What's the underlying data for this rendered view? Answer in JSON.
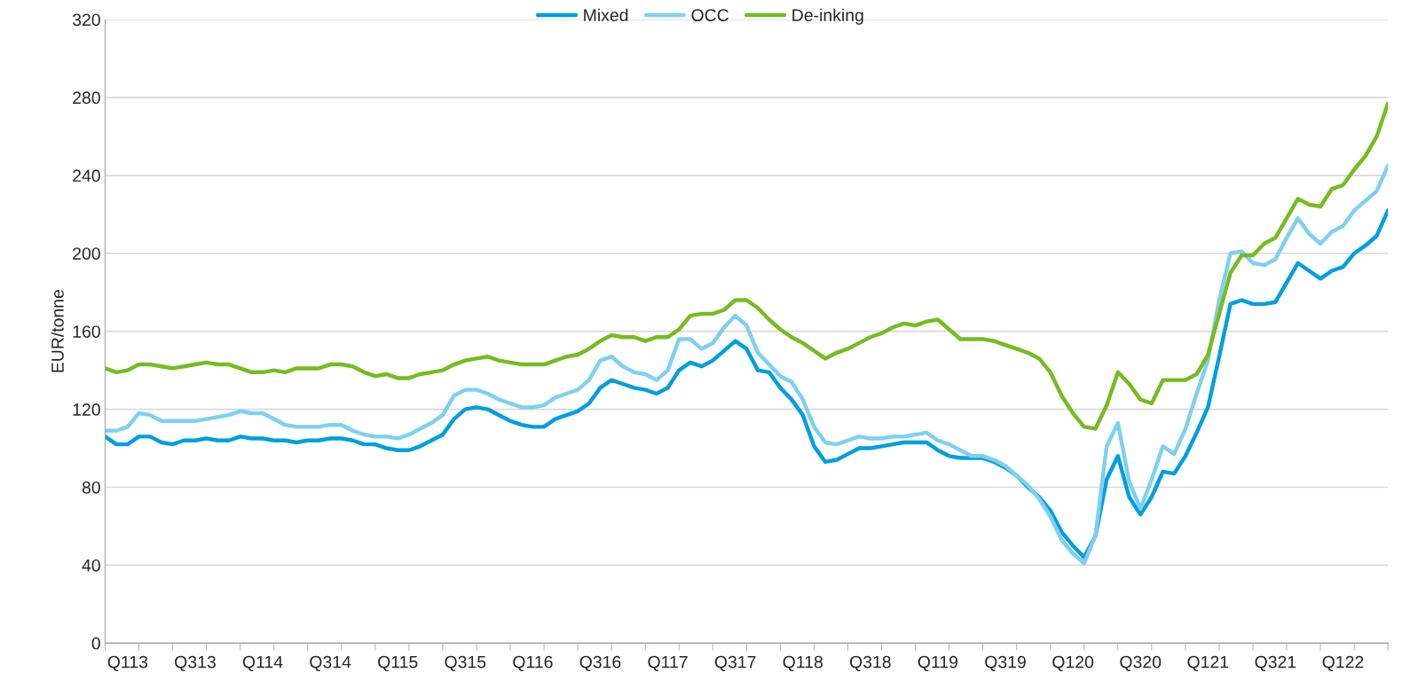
{
  "chart_data": {
    "type": "line",
    "ylabel": "EUR/tonne",
    "categories": [
      null,
      null,
      "Q113",
      null,
      null,
      null,
      null,
      null,
      "Q313",
      null,
      null,
      null,
      null,
      null,
      "Q114",
      null,
      null,
      null,
      null,
      null,
      "Q314",
      null,
      null,
      null,
      null,
      null,
      "Q115",
      null,
      null,
      null,
      null,
      null,
      "Q315",
      null,
      null,
      null,
      null,
      null,
      "Q116",
      null,
      null,
      null,
      null,
      null,
      "Q316",
      null,
      null,
      null,
      null,
      null,
      "Q117",
      null,
      null,
      null,
      null,
      null,
      "Q317",
      null,
      null,
      null,
      null,
      null,
      "Q118",
      null,
      null,
      null,
      null,
      null,
      "Q318",
      null,
      null,
      null,
      null,
      null,
      "Q119",
      null,
      null,
      null,
      null,
      null,
      "Q319",
      null,
      null,
      null,
      null,
      null,
      "Q120",
      null,
      null,
      null,
      null,
      null,
      "Q320",
      null,
      null,
      null,
      null,
      null,
      "Q121",
      null,
      null,
      null,
      null,
      null,
      "Q321",
      null,
      null,
      null,
      null,
      null,
      "Q122",
      null,
      null,
      null,
      null
    ],
    "series": [
      {
        "name": "Mixed",
        "color": "#009fdf",
        "values": [
          106,
          102,
          102,
          106,
          106,
          103,
          102,
          104,
          104,
          105,
          104,
          104,
          106,
          105,
          105,
          104,
          104,
          103,
          104,
          104,
          105,
          105,
          104,
          102,
          102,
          100,
          99,
          99,
          101,
          104,
          107,
          115,
          120,
          121,
          120,
          117,
          114,
          112,
          111,
          111,
          115,
          117,
          119,
          123,
          131,
          135,
          133,
          131,
          130,
          128,
          131,
          140,
          144,
          142,
          145,
          150,
          155,
          151,
          140,
          139,
          131,
          125,
          117,
          101,
          93,
          94,
          97,
          100,
          100,
          101,
          102,
          103,
          103,
          103,
          99,
          96,
          95,
          95,
          95,
          93,
          90,
          86,
          80,
          75,
          68,
          57,
          50,
          44,
          55,
          84,
          96,
          75,
          66,
          75,
          88,
          87,
          96,
          108,
          121,
          147,
          174,
          176,
          174,
          174,
          175,
          185,
          195,
          191,
          187,
          191,
          193,
          200,
          204,
          209,
          222
        ]
      },
      {
        "name": "OCC",
        "color": "#7fd0f0",
        "values": [
          109,
          109,
          111,
          118,
          117,
          114,
          114,
          114,
          114,
          115,
          116,
          117,
          119,
          118,
          118,
          115,
          112,
          111,
          111,
          111,
          112,
          112,
          109,
          107,
          106,
          106,
          105,
          107,
          110,
          113,
          117,
          127,
          130,
          130,
          128,
          125,
          123,
          121,
          121,
          122,
          126,
          128,
          130,
          135,
          145,
          147,
          142,
          139,
          138,
          135,
          140,
          156,
          156,
          151,
          154,
          162,
          168,
          163,
          149,
          143,
          137,
          134,
          125,
          111,
          103,
          102,
          104,
          106,
          105,
          105,
          106,
          106,
          107,
          108,
          104,
          102,
          99,
          96,
          96,
          94,
          91,
          86,
          81,
          74,
          65,
          53,
          46,
          41,
          55,
          101,
          113,
          83,
          69,
          84,
          101,
          97,
          110,
          128,
          145,
          176,
          200,
          201,
          195,
          194,
          197,
          208,
          218,
          210,
          205,
          211,
          214,
          222,
          227,
          232,
          245
        ]
      },
      {
        "name": "De-inking",
        "color": "#76bc21",
        "values": [
          141,
          139,
          140,
          143,
          143,
          142,
          141,
          142,
          143,
          144,
          143,
          143,
          141,
          139,
          139,
          140,
          139,
          141,
          141,
          141,
          143,
          143,
          142,
          139,
          137,
          138,
          136,
          136,
          138,
          139,
          140,
          143,
          145,
          146,
          147,
          145,
          144,
          143,
          143,
          143,
          145,
          147,
          148,
          151,
          155,
          158,
          157,
          157,
          155,
          157,
          157,
          161,
          168,
          169,
          169,
          171,
          176,
          176,
          172,
          166,
          161,
          157,
          154,
          150,
          146,
          149,
          151,
          154,
          157,
          159,
          162,
          164,
          163,
          165,
          166,
          161,
          156,
          156,
          156,
          155,
          153,
          151,
          149,
          146,
          139,
          127,
          118,
          111,
          110,
          122,
          139,
          133,
          125,
          123,
          135,
          135,
          135,
          138,
          148,
          169,
          190,
          199,
          199,
          205,
          208,
          218,
          228,
          225,
          224,
          233,
          235,
          243,
          250,
          260,
          277
        ]
      }
    ],
    "ylim": [
      0,
      320
    ],
    "yticks": [
      0,
      40,
      80,
      120,
      160,
      200,
      240,
      280,
      320
    ],
    "grid": "y",
    "legend": "top"
  }
}
